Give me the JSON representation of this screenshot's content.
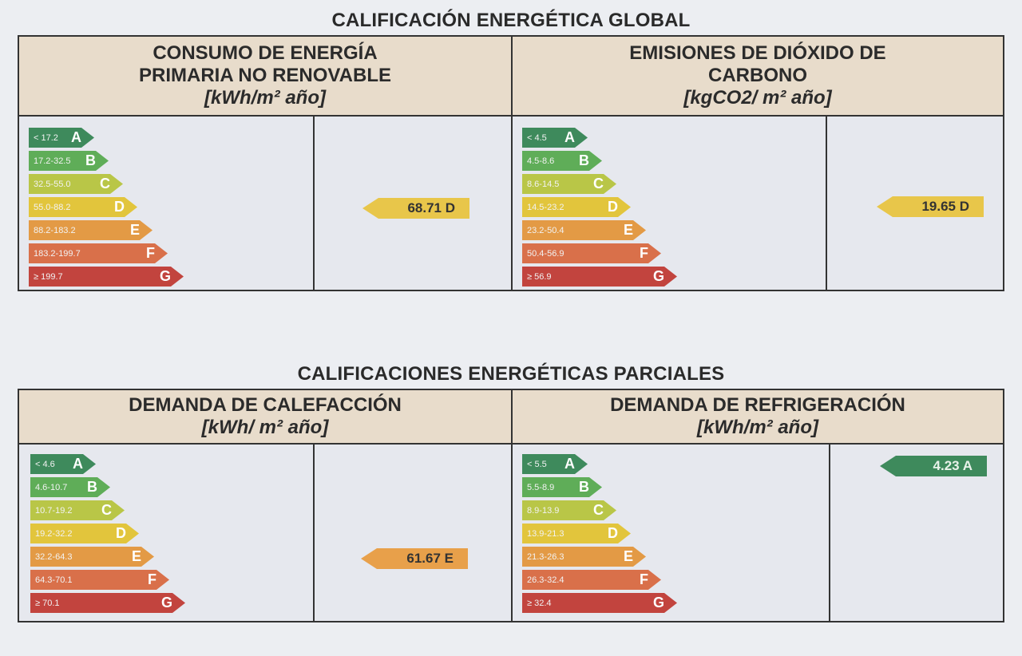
{
  "global": {
    "title": "CALIFICACIÓN ENERGÉTICA GLOBAL",
    "panels": [
      {
        "title_lines": [
          "CONSUMO DE ENERGÍA",
          "PRIMARIA NO RENOVABLE"
        ],
        "unit": "[kWh/m² año]",
        "ranges": [
          "< 17.2",
          "17.2-32.5",
          "32.5-55.0",
          "55.0-88.2",
          "88.2-183.2",
          "183.2-199.7",
          "≥ 199.7"
        ],
        "result": "68.71 D",
        "result_color": "#e8c64a"
      },
      {
        "title_lines": [
          "EMISIONES DE DIÓXIDO DE",
          "CARBONO"
        ],
        "unit": "[kgCO2/ m² año]",
        "ranges": [
          "< 4.5",
          "4.5-8.6",
          "8.6-14.5",
          "14.5-23.2",
          "23.2-50.4",
          "50.4-56.9",
          "≥ 56.9"
        ],
        "result": "19.65 D",
        "result_color": "#e8c64a"
      }
    ]
  },
  "partial": {
    "title": "CALIFICACIONES ENERGÉTICAS PARCIALES",
    "panels": [
      {
        "title_lines": [
          "DEMANDA DE CALEFACCIÓN"
        ],
        "unit": "[kWh/ m² año]",
        "ranges": [
          "< 4.6",
          "4.6-10.7",
          "10.7-19.2",
          "19.2-32.2",
          "32.2-64.3",
          "64.3-70.1",
          "≥ 70.1"
        ],
        "result": "61.67 E",
        "result_color": "#e8a04a"
      },
      {
        "title_lines": [
          "DEMANDA DE REFRIGERACIÓN"
        ],
        "unit": "[kWh/m² año]",
        "ranges": [
          "< 5.5",
          "5.5-8.9",
          "8.9-13.9",
          "13.9-21.3",
          "21.3-26.3",
          "26.3-32.4",
          "≥ 32.4"
        ],
        "result": "4.23 A",
        "result_color": "#3e8a5c"
      }
    ]
  },
  "letters": [
    "A",
    "B",
    "C",
    "D",
    "E",
    "F",
    "G"
  ]
}
